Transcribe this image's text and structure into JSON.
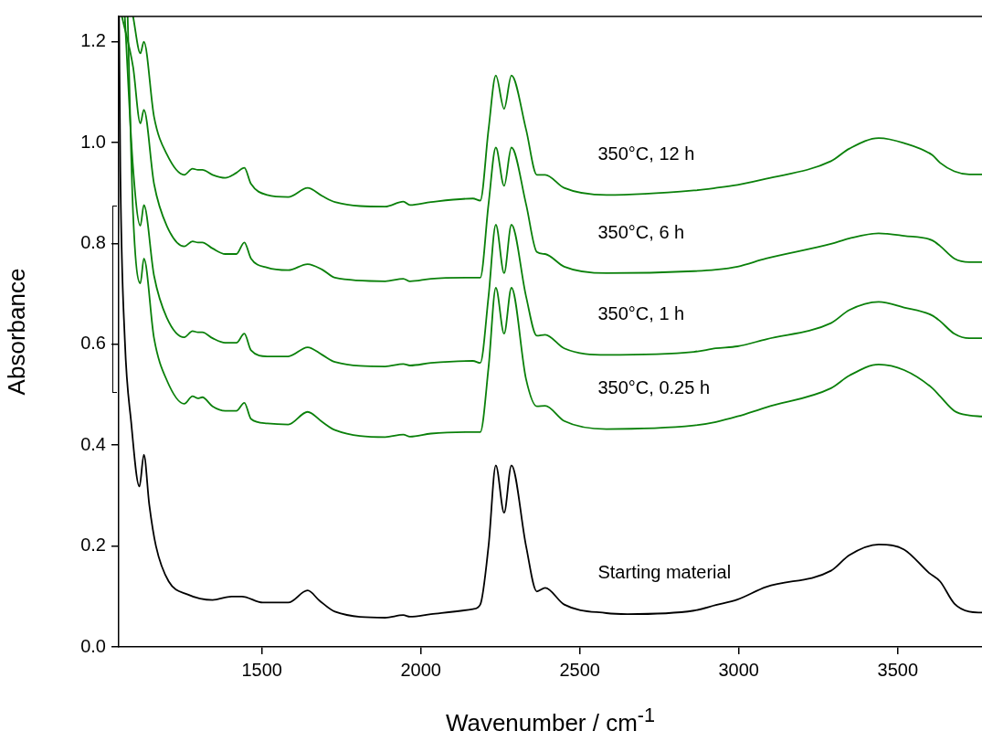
{
  "chart_data": {
    "type": "line",
    "xlabel": "Wavenumber / cm$^{-1}$",
    "ylabel": "Absorbance",
    "xlim": [
      1050,
      3765
    ],
    "ylim": [
      0,
      1.25
    ],
    "xticks": [
      1500,
      2000,
      2500,
      3000,
      3500
    ],
    "yticks": [
      {
        "value": 0,
        "label": "0.0"
      },
      {
        "value": 0.2,
        "label": "0.2"
      },
      {
        "value": 0.4,
        "label": "0.4"
      },
      {
        "value": 0.6,
        "label": "0.6"
      },
      {
        "value": 0.8,
        "label": "0.8"
      },
      {
        "value": 1,
        "label": "1.0"
      },
      {
        "value": 1.2,
        "label": "1.2"
      }
    ],
    "grid": false,
    "legend": false,
    "marker": "none",
    "series": [
      {
        "name": "Starting material",
        "color": "#000000",
        "x": [
          1051,
          1055,
          1069,
          1089,
          1115,
          1129,
          1146,
          1167,
          1207,
          1267,
          1345,
          1405,
          1437,
          1503,
          1583,
          1644,
          1681,
          1730,
          1888,
          1945,
          1966,
          2032,
          2164,
          2187,
          2213,
          2236,
          2262,
          2285,
          2331,
          2365,
          2391,
          2451,
          2584,
          2650,
          2859,
          2928,
          2996,
          3086,
          3290,
          3348,
          3440,
          3520,
          3598,
          3633,
          3678,
          3725,
          3765
        ],
        "values": [
          1.25,
          0.943,
          0.61,
          0.446,
          0.318,
          0.381,
          0.282,
          0.2,
          0.13,
          0.104,
          0.093,
          0.1,
          0.1,
          0.088,
          0.088,
          0.112,
          0.092,
          0.07,
          0.058,
          0.063,
          0.06,
          0.065,
          0.075,
          0.084,
          0.2,
          0.36,
          0.266,
          0.36,
          0.2,
          0.11,
          0.117,
          0.084,
          0.067,
          0.065,
          0.072,
          0.083,
          0.094,
          0.119,
          0.151,
          0.182,
          0.203,
          0.193,
          0.147,
          0.13,
          0.086,
          0.07,
          0.068
        ]
      },
      {
        "name": "350°C, 0.25 h",
        "color": "#0a800a",
        "x": [
          1078,
          1095,
          1118,
          1129,
          1161,
          1201,
          1256,
          1282,
          1299,
          1313,
          1345,
          1385,
          1420,
          1445,
          1466,
          1517,
          1583,
          1644,
          1690,
          1730,
          1888,
          1945,
          1966,
          2032,
          2164,
          2187,
          2213,
          2236,
          2262,
          2285,
          2331,
          2365,
          2391,
          2451,
          2584,
          2859,
          2928,
          2996,
          3086,
          3290,
          3348,
          3440,
          3520,
          3609,
          3633,
          3678,
          3725,
          3765
        ],
        "values": [
          1.25,
          0.86,
          0.721,
          0.77,
          0.612,
          0.529,
          0.482,
          0.497,
          0.493,
          0.495,
          0.477,
          0.468,
          0.468,
          0.484,
          0.452,
          0.443,
          0.441,
          0.466,
          0.446,
          0.43,
          0.416,
          0.421,
          0.417,
          0.423,
          0.426,
          0.426,
          0.554,
          0.712,
          0.621,
          0.712,
          0.531,
          0.477,
          0.478,
          0.448,
          0.432,
          0.439,
          0.446,
          0.457,
          0.475,
          0.513,
          0.538,
          0.56,
          0.549,
          0.513,
          0.497,
          0.468,
          0.459,
          0.457
        ]
      },
      {
        "name": "350°C, 1 h",
        "color": "#0a800a",
        "x": [
          1069,
          1095,
          1118,
          1129,
          1161,
          1201,
          1256,
          1282,
          1299,
          1313,
          1345,
          1385,
          1420,
          1445,
          1466,
          1517,
          1583,
          1644,
          1690,
          1730,
          1888,
          1945,
          1966,
          2032,
          2164,
          2187,
          2213,
          2236,
          2262,
          2285,
          2331,
          2365,
          2391,
          2451,
          2584,
          2859,
          2928,
          2996,
          3086,
          3290,
          3348,
          3440,
          3520,
          3609,
          3633,
          3678,
          3725,
          3765
        ],
        "values": [
          1.25,
          0.95,
          0.835,
          0.876,
          0.736,
          0.653,
          0.614,
          0.626,
          0.624,
          0.624,
          0.612,
          0.603,
          0.603,
          0.621,
          0.588,
          0.576,
          0.576,
          0.594,
          0.579,
          0.565,
          0.556,
          0.561,
          0.558,
          0.563,
          0.567,
          0.563,
          0.695,
          0.837,
          0.741,
          0.837,
          0.695,
          0.617,
          0.619,
          0.592,
          0.579,
          0.585,
          0.592,
          0.596,
          0.61,
          0.642,
          0.668,
          0.684,
          0.673,
          0.657,
          0.646,
          0.621,
          0.612,
          0.612
        ]
      },
      {
        "name": "350°C, 6 h",
        "color": "#0a800a",
        "x": [
          1060,
          1095,
          1118,
          1129,
          1161,
          1201,
          1256,
          1282,
          1299,
          1313,
          1345,
          1385,
          1420,
          1445,
          1466,
          1517,
          1583,
          1644,
          1690,
          1730,
          1888,
          1945,
          1966,
          2032,
          2164,
          2187,
          2213,
          2236,
          2262,
          2285,
          2331,
          2365,
          2391,
          2451,
          2584,
          2859,
          2928,
          2996,
          3086,
          3290,
          3348,
          3440,
          3520,
          3609,
          3633,
          3678,
          3725,
          3765
        ],
        "values": [
          1.25,
          1.15,
          1.038,
          1.065,
          0.918,
          0.835,
          0.794,
          0.804,
          0.802,
          0.802,
          0.79,
          0.779,
          0.779,
          0.802,
          0.77,
          0.752,
          0.747,
          0.759,
          0.748,
          0.732,
          0.725,
          0.73,
          0.725,
          0.73,
          0.732,
          0.732,
          0.878,
          0.99,
          0.914,
          0.99,
          0.878,
          0.783,
          0.779,
          0.754,
          0.741,
          0.745,
          0.748,
          0.754,
          0.77,
          0.799,
          0.81,
          0.82,
          0.815,
          0.806,
          0.795,
          0.77,
          0.763,
          0.763
        ]
      },
      {
        "name": "350°C, 12 h",
        "color": "#0a800a",
        "x": [
          1095,
          1118,
          1129,
          1161,
          1201,
          1256,
          1282,
          1299,
          1313,
          1345,
          1385,
          1420,
          1445,
          1466,
          1517,
          1583,
          1644,
          1690,
          1730,
          1888,
          1945,
          1966,
          2032,
          2164,
          2187,
          2213,
          2236,
          2262,
          2285,
          2331,
          2365,
          2391,
          2451,
          2584,
          2859,
          2928,
          2996,
          3086,
          3290,
          3348,
          3440,
          3520,
          3609,
          3633,
          3678,
          3725,
          3765
        ],
        "values": [
          1.25,
          1.177,
          1.2,
          1.051,
          0.977,
          0.936,
          0.948,
          0.946,
          0.946,
          0.936,
          0.93,
          0.94,
          0.95,
          0.918,
          0.896,
          0.892,
          0.91,
          0.894,
          0.882,
          0.873,
          0.883,
          0.876,
          0.882,
          0.889,
          0.885,
          1.026,
          1.133,
          1.067,
          1.133,
          1.026,
          0.936,
          0.936,
          0.91,
          0.896,
          0.905,
          0.91,
          0.916,
          0.928,
          0.963,
          0.988,
          1.009,
          0.999,
          0.975,
          0.96,
          0.943,
          0.937,
          0.937
        ]
      }
    ]
  }
}
